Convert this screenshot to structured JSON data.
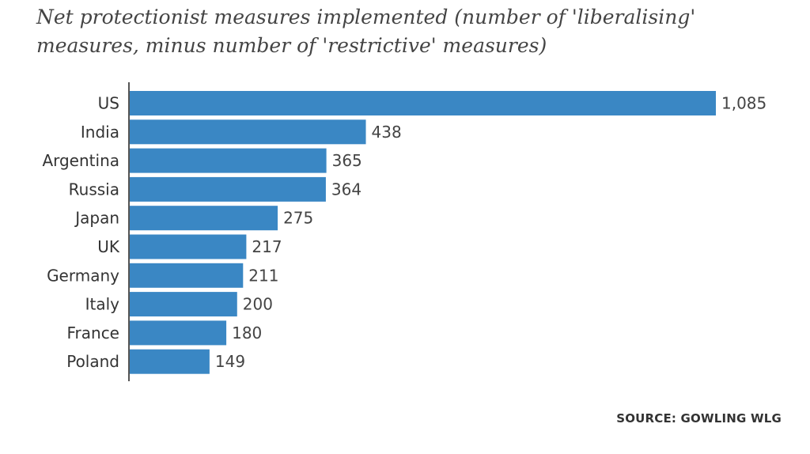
{
  "chart_data": {
    "type": "bar",
    "orientation": "horizontal",
    "title": "Net protectionist measures implemented (number of 'liberalising' measures, minus number of 'restrictive' measures)",
    "categories": [
      "US",
      "India",
      "Argentina",
      "Russia",
      "Japan",
      "UK",
      "Germany",
      "Italy",
      "France",
      "Poland"
    ],
    "values": [
      1085,
      438,
      365,
      364,
      275,
      217,
      211,
      200,
      180,
      149
    ],
    "value_labels": [
      "1,085",
      "438",
      "365",
      "364",
      "275",
      "217",
      "211",
      "200",
      "180",
      "149"
    ],
    "xlim": [
      0,
      1085
    ],
    "grid": false,
    "bar_color": "#3a87c4",
    "source": "SOURCE: GOWLING WLG"
  }
}
